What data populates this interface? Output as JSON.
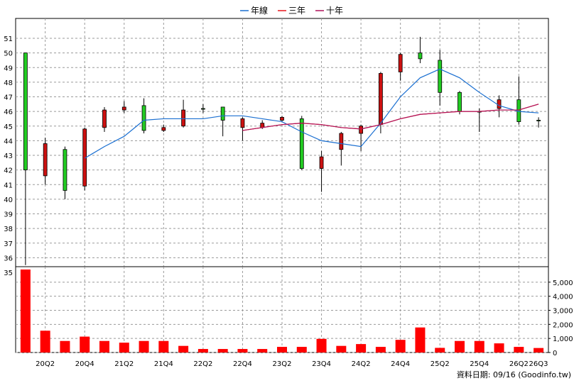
{
  "chart_data": [
    {
      "type": "candlestick",
      "ylim": [
        35,
        51
      ],
      "grid": true,
      "legend_position": "top-center",
      "legend": [
        {
          "label": "年線",
          "color": "#1a6fd1"
        },
        {
          "label": "三年",
          "color": "#e8161b"
        },
        {
          "label": "十年",
          "color": "#b0135a"
        }
      ],
      "yticks": [
        "35",
        "36",
        "37",
        "38",
        "39",
        "40",
        "41",
        "42",
        "43",
        "44",
        "45",
        "46",
        "47",
        "48",
        "49",
        "50",
        "51"
      ],
      "xticks": [
        "20Q2",
        "20Q4",
        "21Q2",
        "21Q4",
        "22Q2",
        "22Q4",
        "23Q2",
        "23Q4",
        "24Q2",
        "24Q4",
        "25Q2",
        "25Q4",
        "26Q2",
        "26Q3"
      ],
      "candles": [
        {
          "o": 42.0,
          "h": 50.0,
          "l": 35.5,
          "c": 50.0
        },
        {
          "o": 43.8,
          "h": 44.2,
          "l": 41.0,
          "c": 41.6
        },
        {
          "o": 40.6,
          "h": 43.6,
          "l": 40.0,
          "c": 43.4
        },
        {
          "o": 44.8,
          "h": 44.9,
          "l": 40.6,
          "c": 40.9
        },
        {
          "o": 46.1,
          "h": 46.3,
          "l": 44.6,
          "c": 44.9
        },
        {
          "o": 46.3,
          "h": 46.7,
          "l": 45.9,
          "c": 46.1
        },
        {
          "o": 44.7,
          "h": 46.9,
          "l": 44.5,
          "c": 46.4
        },
        {
          "o": 44.9,
          "h": 45.1,
          "l": 44.6,
          "c": 44.7
        },
        {
          "o": 46.1,
          "h": 46.8,
          "l": 44.9,
          "c": 45.0
        },
        {
          "o": 46.2,
          "h": 46.5,
          "l": 45.9,
          "c": 46.2
        },
        {
          "o": 45.4,
          "h": 46.3,
          "l": 44.3,
          "c": 46.3
        },
        {
          "o": 45.5,
          "h": 45.6,
          "l": 44.0,
          "c": 44.9
        },
        {
          "o": 45.2,
          "h": 45.4,
          "l": 44.8,
          "c": 44.9
        },
        {
          "o": 45.6,
          "h": 45.7,
          "l": 45.3,
          "c": 45.4
        },
        {
          "o": 42.1,
          "h": 45.7,
          "l": 42.0,
          "c": 45.5
        },
        {
          "o": 42.9,
          "h": 43.3,
          "l": 40.5,
          "c": 42.1
        },
        {
          "o": 44.5,
          "h": 44.6,
          "l": 42.3,
          "c": 43.4
        },
        {
          "o": 45.0,
          "h": 45.1,
          "l": 43.3,
          "c": 44.5
        },
        {
          "o": 48.6,
          "h": 48.7,
          "l": 44.5,
          "c": 45.1
        },
        {
          "o": 49.9,
          "h": 50.0,
          "l": 48.1,
          "c": 48.7
        },
        {
          "o": 49.6,
          "h": 51.1,
          "l": 49.3,
          "c": 50.0
        },
        {
          "o": 47.3,
          "h": 50.2,
          "l": 46.4,
          "c": 49.5
        },
        {
          "o": 46.0,
          "h": 47.4,
          "l": 45.8,
          "c": 47.3
        },
        {
          "o": 46.0,
          "h": 46.2,
          "l": 44.6,
          "c": 46.0
        },
        {
          "o": 46.8,
          "h": 47.1,
          "l": 45.6,
          "c": 46.2
        },
        {
          "o": 45.3,
          "h": 48.4,
          "l": 45.1,
          "c": 46.8
        },
        {
          "o": 45.4,
          "h": 45.6,
          "l": 44.9,
          "c": 45.4
        }
      ],
      "lines": [
        {
          "name": "年線",
          "color": "#1a6fd1",
          "points": [
            [
              3,
              42.8
            ],
            [
              4,
              43.6
            ],
            [
              5,
              44.3
            ],
            [
              6,
              45.4
            ],
            [
              7,
              45.5
            ],
            [
              8,
              45.5
            ],
            [
              9,
              45.5
            ],
            [
              10,
              45.7
            ],
            [
              11,
              45.7
            ],
            [
              12,
              45.5
            ],
            [
              13,
              45.3
            ],
            [
              14,
              44.6
            ],
            [
              15,
              44.0
            ],
            [
              16,
              43.8
            ],
            [
              17,
              43.6
            ],
            [
              18,
              45.2
            ],
            [
              19,
              47.0
            ],
            [
              20,
              48.3
            ],
            [
              21,
              48.9
            ],
            [
              22,
              48.3
            ],
            [
              23,
              47.3
            ],
            [
              24,
              46.4
            ],
            [
              25,
              46.0
            ],
            [
              26,
              45.9
            ]
          ]
        },
        {
          "name": "三年",
          "color": "#e8161b",
          "points": [
            [
              11,
              44.7
            ],
            [
              12,
              44.9
            ],
            [
              13,
              45.1
            ],
            [
              14,
              45.2
            ],
            [
              15,
              45.1
            ],
            [
              16,
              44.9
            ],
            [
              17,
              44.8
            ],
            [
              18,
              45.1
            ],
            [
              19,
              45.5
            ],
            [
              20,
              45.8
            ],
            [
              21,
              45.9
            ],
            [
              22,
              46.0
            ],
            [
              23,
              46.0
            ],
            [
              24,
              46.1
            ],
            [
              25,
              46.1
            ],
            [
              26,
              46.5
            ]
          ]
        },
        {
          "name": "十年",
          "color": "#b0135a",
          "points": [
            [
              11,
              44.7
            ],
            [
              12,
              44.9
            ],
            [
              13,
              45.1
            ],
            [
              14,
              45.2
            ],
            [
              15,
              45.1
            ],
            [
              16,
              44.9
            ],
            [
              17,
              44.8
            ],
            [
              18,
              45.1
            ],
            [
              19,
              45.5
            ],
            [
              20,
              45.8
            ],
            [
              21,
              45.9
            ],
            [
              22,
              46.0
            ],
            [
              23,
              46.0
            ],
            [
              24,
              46.1
            ],
            [
              25,
              46.1
            ],
            [
              26,
              46.5
            ]
          ]
        }
      ]
    },
    {
      "type": "bar",
      "ylim": [
        0,
        6000
      ],
      "yticks": [
        "0",
        "1,000",
        "2,000",
        "3,000",
        "4,000",
        "5,000"
      ],
      "values": [
        5900,
        1550,
        820,
        1130,
        820,
        700,
        820,
        820,
        470,
        250,
        250,
        250,
        250,
        400,
        400,
        970,
        470,
        600,
        400,
        900,
        1780,
        330,
        820,
        820,
        650,
        400,
        320
      ],
      "color": "#ff0000"
    }
  ],
  "footer": "資料日期: 09/16 (Goodinfo.tw)"
}
